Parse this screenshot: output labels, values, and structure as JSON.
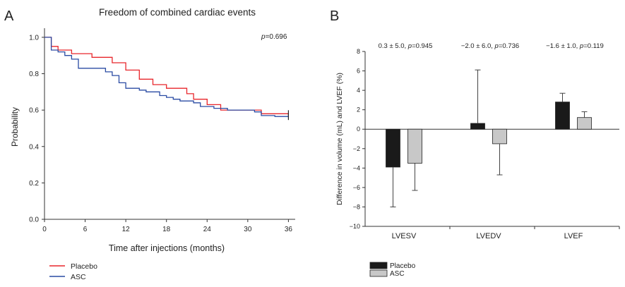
{
  "chart_data": [
    {
      "panel_label": "A",
      "type": "line",
      "title": "Freedom of combined cardiac events",
      "xlabel": "Time after injections (months)",
      "ylabel": "Probability",
      "xlim": [
        0,
        37
      ],
      "ylim": [
        0,
        1.05
      ],
      "xticks": [
        0,
        6,
        12,
        18,
        24,
        30,
        36
      ],
      "yticks": [
        "0.0",
        "0.2",
        "0.4",
        "0.6",
        "0.8",
        "1.0"
      ],
      "annotation_prefix": "p",
      "annotation_value": "=0.696",
      "legend_position": "bottom-left",
      "series": [
        {
          "name": "Placebo",
          "color": "#e8262b",
          "step": true,
          "points": [
            [
              0,
              1.0
            ],
            [
              1,
              1.0
            ],
            [
              1,
              0.95
            ],
            [
              2,
              0.95
            ],
            [
              2,
              0.93
            ],
            [
              4,
              0.93
            ],
            [
              4,
              0.91
            ],
            [
              7,
              0.91
            ],
            [
              7,
              0.89
            ],
            [
              10,
              0.89
            ],
            [
              10,
              0.86
            ],
            [
              12,
              0.86
            ],
            [
              12,
              0.82
            ],
            [
              14,
              0.82
            ],
            [
              14,
              0.77
            ],
            [
              16,
              0.77
            ],
            [
              16,
              0.74
            ],
            [
              18,
              0.74
            ],
            [
              18,
              0.72
            ],
            [
              21,
              0.72
            ],
            [
              21,
              0.69
            ],
            [
              22,
              0.69
            ],
            [
              22,
              0.66
            ],
            [
              24,
              0.66
            ],
            [
              24,
              0.63
            ],
            [
              26,
              0.63
            ],
            [
              26,
              0.6
            ],
            [
              32,
              0.6
            ],
            [
              32,
              0.58
            ],
            [
              36,
              0.58
            ]
          ]
        },
        {
          "name": "ASC",
          "color": "#2a4ba3",
          "step": true,
          "points": [
            [
              0,
              1.0
            ],
            [
              1,
              1.0
            ],
            [
              1,
              0.93
            ],
            [
              2,
              0.93
            ],
            [
              2,
              0.92
            ],
            [
              3,
              0.92
            ],
            [
              3,
              0.9
            ],
            [
              4,
              0.9
            ],
            [
              4,
              0.88
            ],
            [
              5,
              0.88
            ],
            [
              5,
              0.83
            ],
            [
              9,
              0.83
            ],
            [
              9,
              0.81
            ],
            [
              10,
              0.81
            ],
            [
              10,
              0.79
            ],
            [
              11,
              0.79
            ],
            [
              11,
              0.75
            ],
            [
              12,
              0.75
            ],
            [
              12,
              0.72
            ],
            [
              14,
              0.72
            ],
            [
              14,
              0.71
            ],
            [
              15,
              0.71
            ],
            [
              15,
              0.7
            ],
            [
              17,
              0.7
            ],
            [
              17,
              0.68
            ],
            [
              18,
              0.68
            ],
            [
              18,
              0.67
            ],
            [
              19,
              0.67
            ],
            [
              19,
              0.66
            ],
            [
              20,
              0.66
            ],
            [
              20,
              0.65
            ],
            [
              22,
              0.65
            ],
            [
              22,
              0.64
            ],
            [
              23,
              0.64
            ],
            [
              23,
              0.62
            ],
            [
              25,
              0.62
            ],
            [
              25,
              0.61
            ],
            [
              27,
              0.61
            ],
            [
              27,
              0.6
            ],
            [
              31,
              0.6
            ],
            [
              31,
              0.59
            ],
            [
              32,
              0.59
            ],
            [
              32,
              0.57
            ],
            [
              34,
              0.57
            ],
            [
              34,
              0.565
            ],
            [
              36,
              0.565
            ]
          ]
        }
      ]
    },
    {
      "panel_label": "B",
      "type": "bar",
      "ylabel": "Difference in volume (mL) and LVEF (%)",
      "ylim": [
        -10,
        8
      ],
      "yticks": [
        "8",
        "6",
        "4",
        "2",
        "0",
        "−2",
        "−4",
        "−6",
        "−8",
        "−10"
      ],
      "ytick_values": [
        8,
        6,
        4,
        2,
        0,
        -2,
        -4,
        -6,
        -8,
        -10
      ],
      "categories": [
        "LVESV",
        "LVEDV",
        "LVEF"
      ],
      "annotations": [
        {
          "diff": "0.3 ± 5.0, ",
          "p_letter": "p",
          "p_value": "=0.945"
        },
        {
          "diff": "−2.0 ± 6.0, ",
          "p_letter": "p",
          "p_value": "=0.736"
        },
        {
          "diff": "−1.6 ± 1.0, ",
          "p_letter": "p",
          "p_value": "=0.119"
        }
      ],
      "legend_position": "bottom-left",
      "series": [
        {
          "name": "Placebo",
          "color": "#1a1a1a",
          "values": [
            -3.9,
            0.6,
            2.8
          ],
          "error": [
            4.1,
            5.5,
            0.9
          ]
        },
        {
          "name": "ASC",
          "color": "#c8c8c8",
          "values": [
            -3.5,
            -1.5,
            1.2
          ],
          "error": [
            2.8,
            3.2,
            0.6
          ]
        }
      ]
    }
  ]
}
